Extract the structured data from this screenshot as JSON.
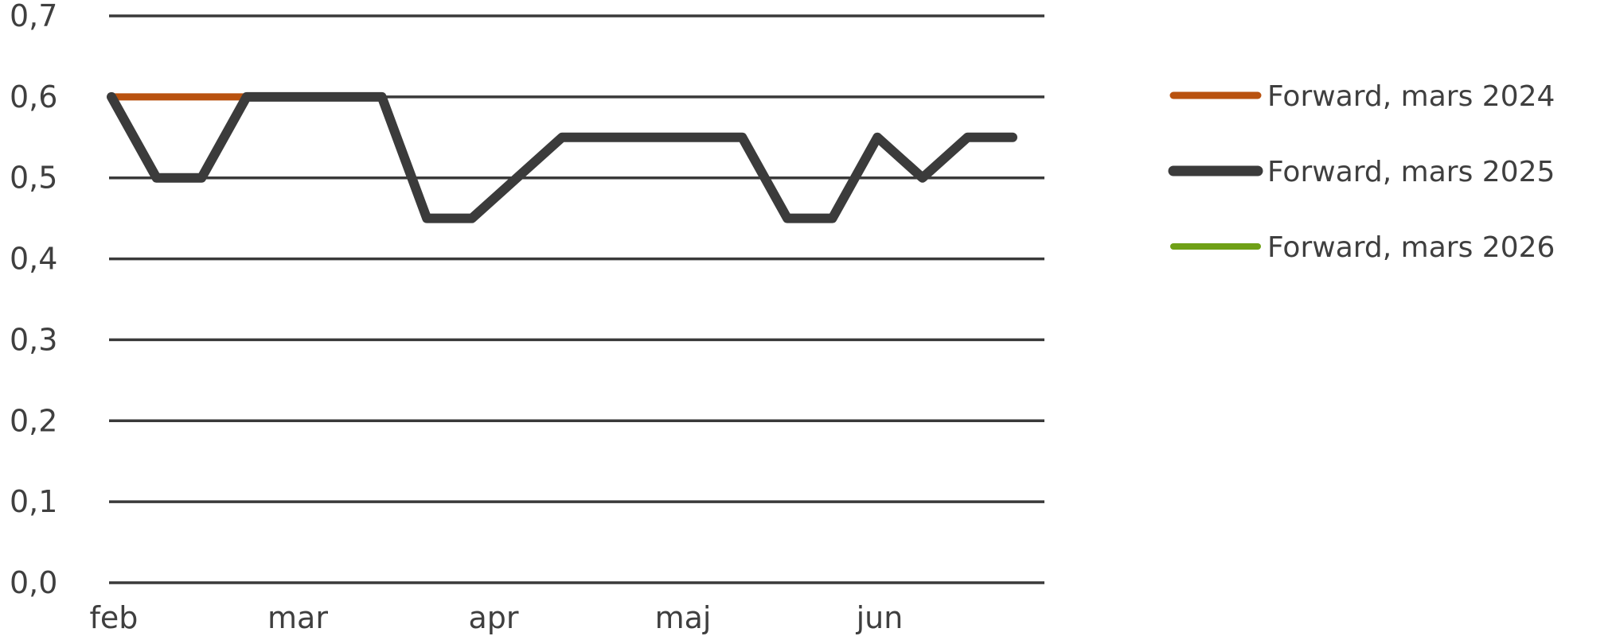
{
  "chart_data": {
    "type": "line",
    "title": "",
    "xlabel": "",
    "ylabel": "",
    "ylim": [
      0,
      0.7
    ],
    "yticks": [
      "0,0",
      "0,1",
      "0,2",
      "0,3",
      "0,4",
      "0,5",
      "0,6",
      "0,7"
    ],
    "x_month_labels": [
      "feb",
      "mar",
      "apr",
      "maj",
      "jun"
    ],
    "grid": true,
    "legend_position": "right",
    "series": [
      {
        "name": "Forward, mars 2024",
        "color": "#B9520F",
        "x": [
          0,
          1,
          2,
          3
        ],
        "values": [
          0.6,
          0.6,
          0.6,
          0.6
        ]
      },
      {
        "name": "Forward, mars 2025",
        "color": "#3B3B3B",
        "x": [
          0,
          1,
          2,
          3,
          4,
          5,
          6,
          7,
          8,
          9,
          10,
          11,
          12,
          13,
          14,
          15,
          16,
          17,
          18,
          19,
          20
        ],
        "values": [
          0.6,
          0.5,
          0.5,
          0.6,
          0.6,
          0.6,
          0.6,
          0.45,
          0.45,
          0.5,
          0.55,
          0.55,
          0.55,
          0.55,
          0.55,
          0.45,
          0.45,
          0.55,
          0.5,
          0.55,
          0.55
        ]
      },
      {
        "name": "Forward, mars 2026",
        "color": "#6FA016",
        "x": [],
        "values": []
      }
    ]
  }
}
